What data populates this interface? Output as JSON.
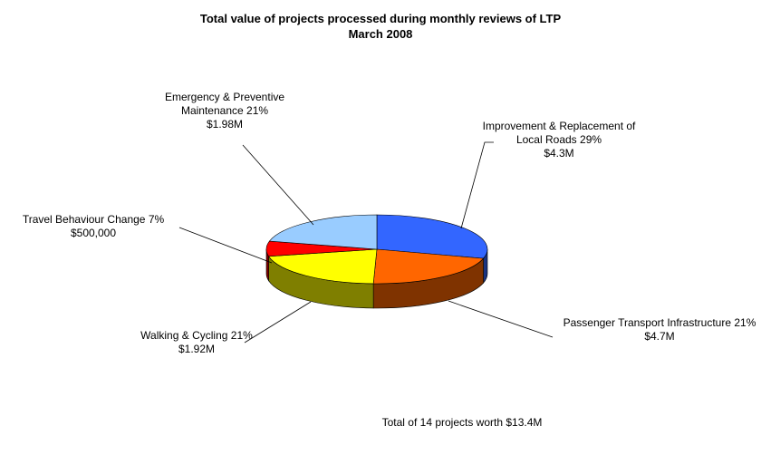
{
  "chart_data": {
    "type": "pie3d",
    "title": "Total value of projects processed during monthly reviews of LTP",
    "subtitle": "March 2008",
    "categories": [
      "Improvement & Replacement of Local Roads",
      "Passenger Transport Infrastructure",
      "Walking & Cycling",
      "Travel Behaviour Change",
      "Emergency & Preventive Maintenance"
    ],
    "values": [
      29,
      21,
      21,
      7,
      21
    ],
    "value_labels": [
      "29%",
      "21%",
      "21%",
      "7%",
      "21%"
    ],
    "amounts": [
      4300000,
      4700000,
      1920000,
      500000,
      1980000
    ],
    "amount_labels": [
      "$4.3M",
      "$4.7M",
      "$1.92M",
      "$500,000",
      "$1.98M"
    ],
    "colors": [
      "#3366ff",
      "#ff6600",
      "#ffff00",
      "#ff0000",
      "#99ccff"
    ],
    "annotation": "Total of 14 projects worth $13.4M"
  }
}
